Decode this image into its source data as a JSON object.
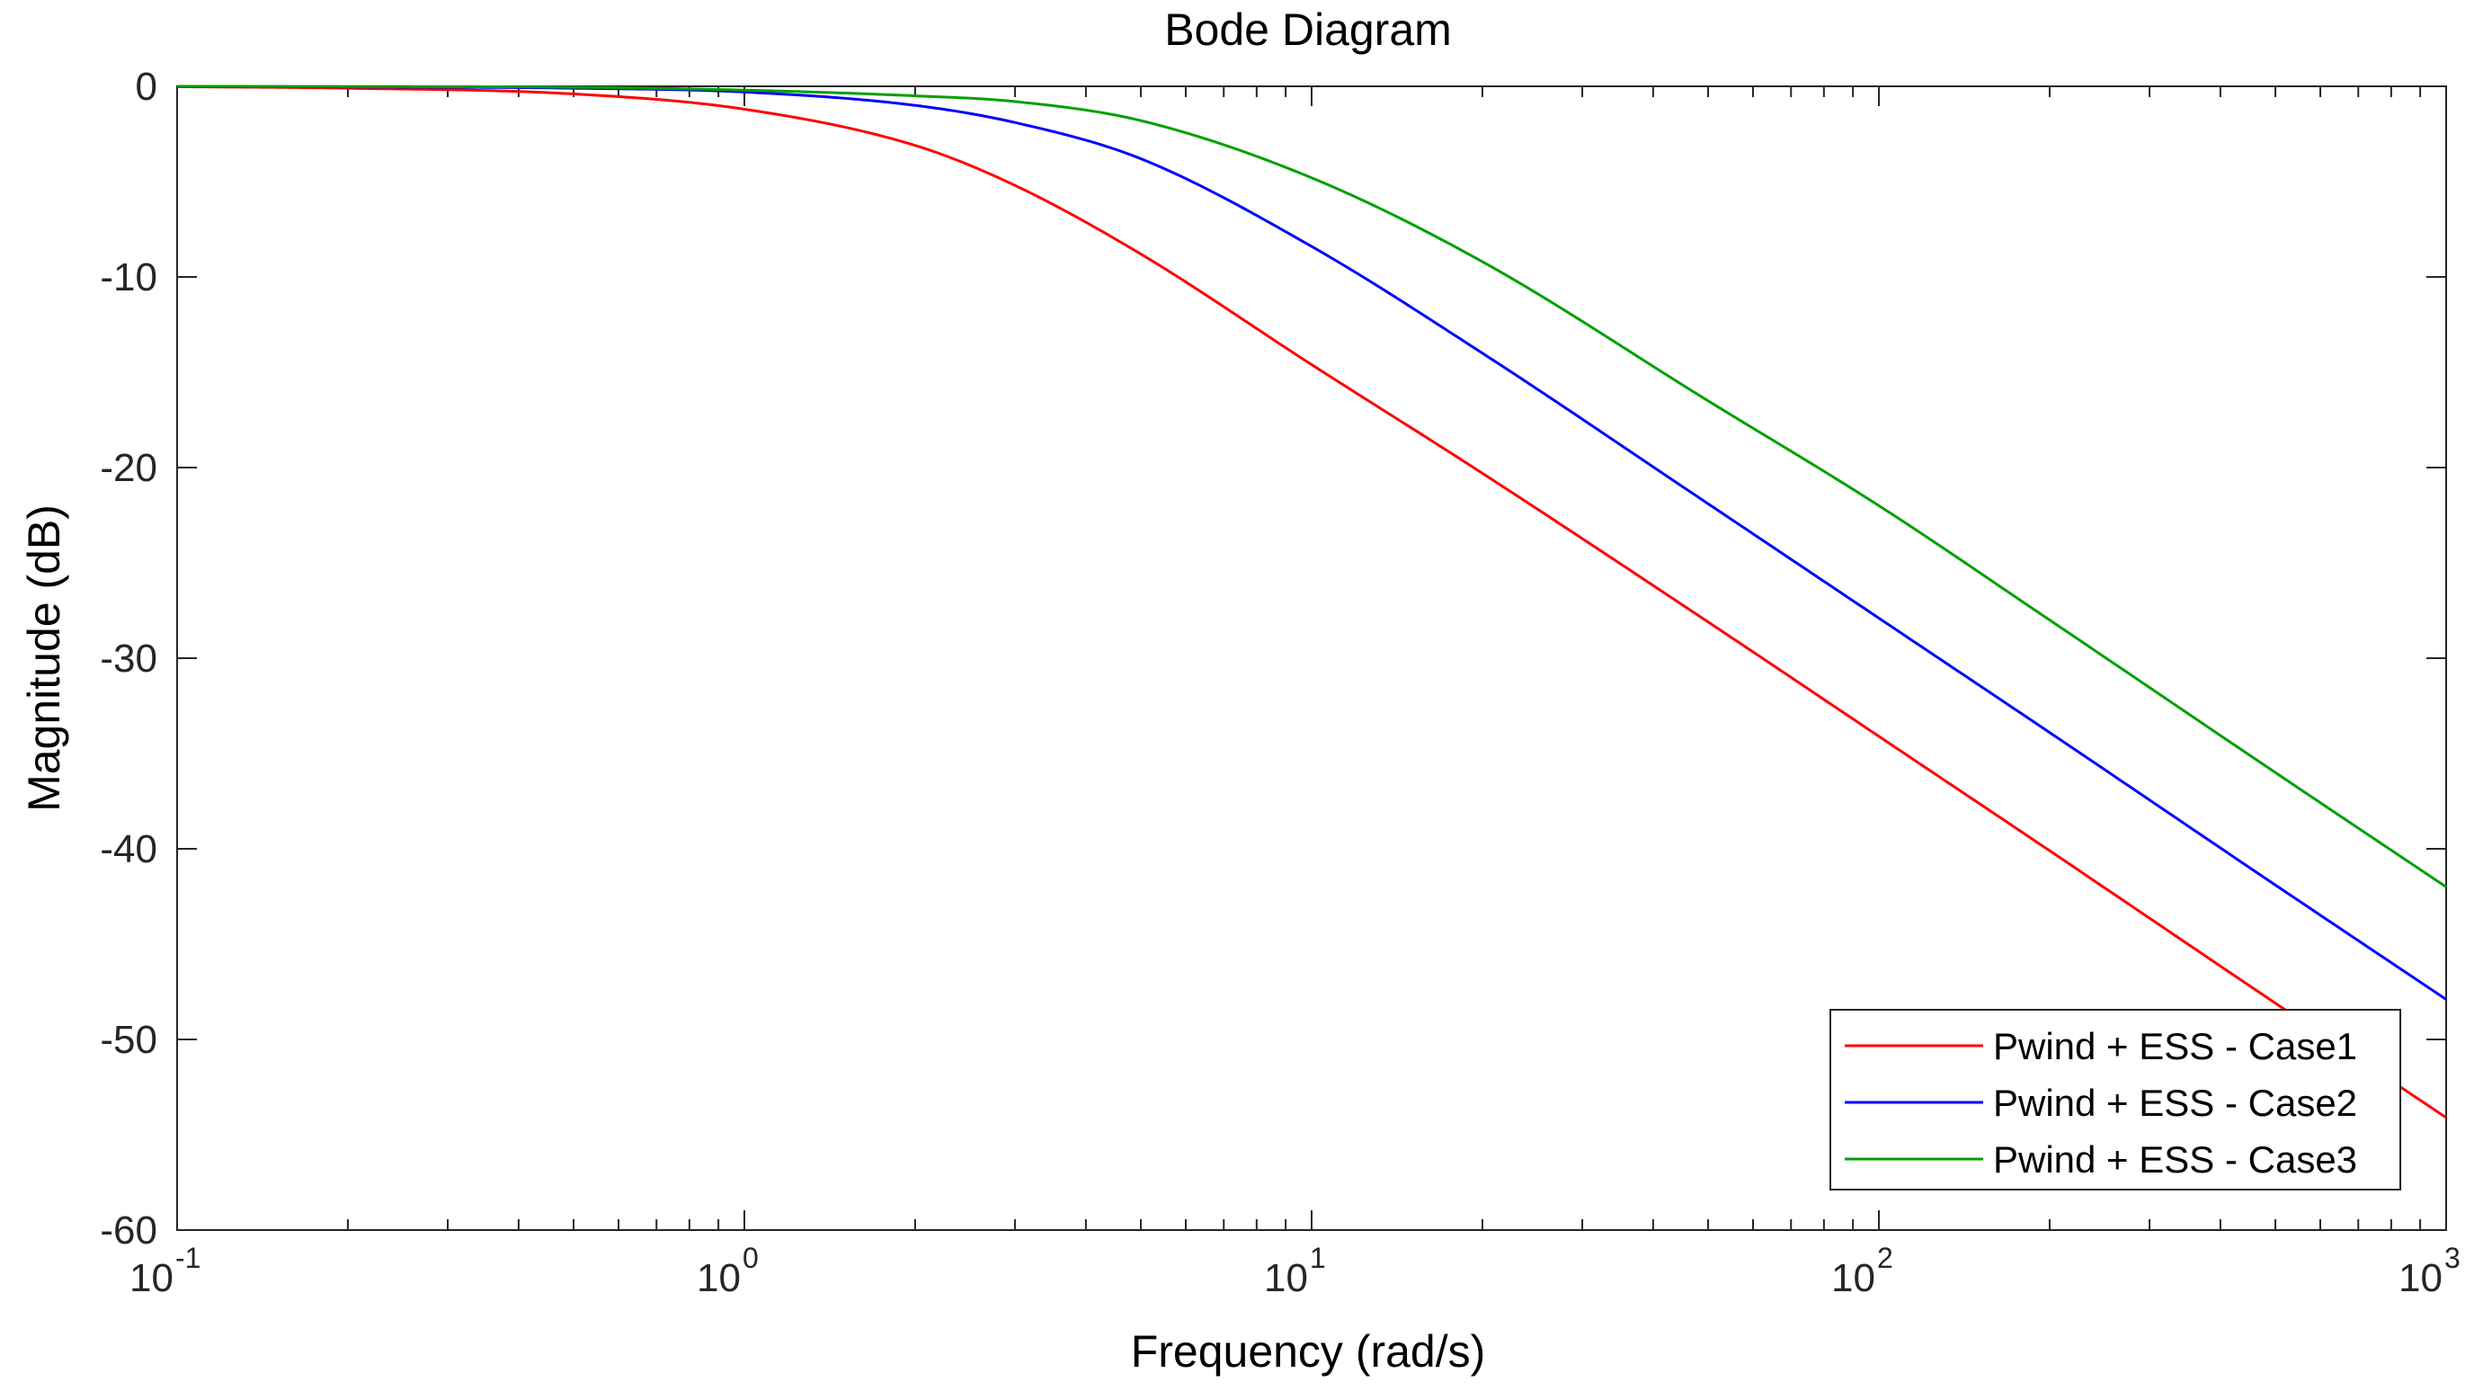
{
  "chart_data": {
    "type": "line",
    "title": "Bode Diagram",
    "xlabel": "Frequency  (rad/s)",
    "ylabel": "Magnitude (dB)",
    "xscale": "log",
    "xlim": [
      0.1,
      1000
    ],
    "ylim": [
      -60,
      0
    ],
    "x_ticks": [
      {
        "base": "10",
        "exp": "-1"
      },
      {
        "base": "10",
        "exp": "0"
      },
      {
        "base": "10",
        "exp": "1"
      },
      {
        "base": "10",
        "exp": "2"
      },
      {
        "base": "10",
        "exp": "3"
      }
    ],
    "y_ticks": [
      "0",
      "-10",
      "-20",
      "-30",
      "-40",
      "-50",
      "-60"
    ],
    "grid": false,
    "legend_position": "bottom-right",
    "x": [
      0.1,
      0.2,
      0.5,
      1,
      2,
      3,
      5,
      10,
      20,
      50,
      100,
      200,
      500,
      1000
    ],
    "series": [
      {
        "name": "Pwind + ESS - Case1",
        "color": "#ff0000",
        "values": [
          -0.02,
          -0.1,
          -0.4,
          -1.2,
          -3.1,
          -5.2,
          -8.8,
          -14.6,
          -20.3,
          -28.1,
          -34.1,
          -40.1,
          -48.1,
          -54.1
        ]
      },
      {
        "name": "Pwind + ESS - Case2",
        "color": "#0000ff",
        "values": [
          -0.01,
          -0.03,
          -0.1,
          -0.3,
          -1.0,
          -1.9,
          -3.8,
          -8.4,
          -14.0,
          -21.9,
          -27.9,
          -33.9,
          -41.9,
          -47.9
        ]
      },
      {
        "name": "Pwind + ESS - Case3",
        "color": "#00a000",
        "values": [
          -0.0,
          -0.01,
          -0.05,
          -0.2,
          -0.5,
          -0.8,
          -1.8,
          -4.8,
          -9.2,
          -16.5,
          -22.0,
          -28.0,
          -36.0,
          -42.0
        ]
      }
    ]
  }
}
